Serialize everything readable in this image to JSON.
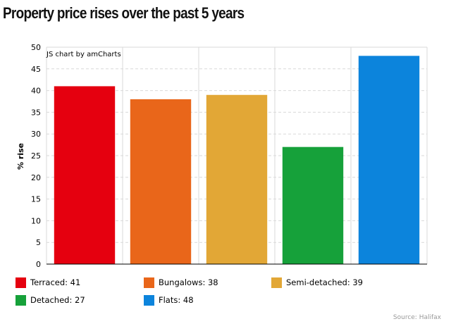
{
  "page": {
    "title": "Property price rises over the past 5 years",
    "source": "Source: Halifax"
  },
  "chart_data": {
    "type": "bar",
    "credit": "JS chart by amCharts",
    "ylabel": "% rise",
    "xlabel": "",
    "ylim": [
      0,
      50
    ],
    "y_ticks": [
      0,
      5,
      10,
      15,
      20,
      25,
      30,
      35,
      40,
      45,
      50
    ],
    "grid": true,
    "legend_position": "bottom",
    "categories": [
      "Terraced",
      "Bungalows",
      "Semi-detached",
      "Detached",
      "Flats"
    ],
    "values": [
      41,
      38,
      39,
      27,
      48
    ],
    "colors": [
      "#e5000f",
      "#e9661a",
      "#e2a736",
      "#16a13a",
      "#0c84dc"
    ],
    "legend": [
      "Terraced: 41",
      "Bungalows: 38",
      "Semi-detached: 39",
      "Detached: 27",
      "Flats: 48"
    ]
  }
}
